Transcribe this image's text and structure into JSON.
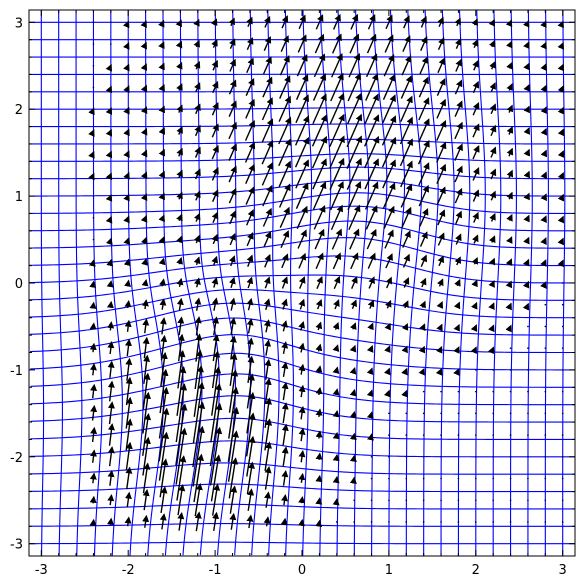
{
  "chart_data": {
    "type": "vector-field",
    "title": "",
    "xlabel": "",
    "ylabel": "",
    "xlim": [
      -3.14159,
      3.14159
    ],
    "ylim": [
      -3.14159,
      3.14159
    ],
    "xticks": [
      -3,
      -2,
      -1,
      0,
      1,
      2,
      3
    ],
    "yticks": [
      -3,
      -2,
      -1,
      0,
      1,
      2,
      3
    ],
    "xtick_labels": [
      "-3",
      "-2",
      "-1",
      "0",
      "1",
      "2",
      "3"
    ],
    "ytick_labels": [
      "-3",
      "-2",
      "-1",
      "0",
      "1",
      "2",
      "3"
    ],
    "grid": {
      "kind": "deformed mesh",
      "color": "#0000ff",
      "line_values": [
        -3.0,
        -2.8,
        -2.6,
        -2.4,
        -2.2,
        -2.0,
        -1.8,
        -1.6,
        -1.4,
        -1.2,
        -1.0,
        -0.8,
        -0.6,
        -0.4,
        -0.2,
        0.0,
        0.2,
        0.4,
        0.6,
        0.8,
        1.0,
        1.2,
        1.4,
        1.6,
        1.8,
        2.0,
        2.2,
        2.4,
        2.6,
        2.8,
        3.0
      ],
      "displacement": [
        {
          "axis": "x",
          "amplitude": 0.18,
          "center": [
            1.0,
            1.0
          ],
          "width": 1.0
        },
        {
          "axis": "x",
          "amplitude": 0.25,
          "center": [
            -1.3,
            -1.5
          ],
          "width": 0.8
        },
        {
          "axis": "y",
          "amplitude": 0.4,
          "center": [
            -1.0,
            -1.0
          ],
          "width": 0.8
        },
        {
          "axis": "y",
          "amplitude": 0.3,
          "center": [
            0.5,
            0.3
          ],
          "width": 0.7
        }
      ]
    },
    "vector_field": {
      "color": "#000000",
      "sample_x": [
        -2.4,
        -2.2,
        -2.0,
        -1.8,
        -1.6,
        -1.4,
        -1.2,
        -1.0,
        -0.8,
        -0.6,
        -0.4,
        -0.2,
        0.0,
        0.2,
        0.4,
        0.6,
        0.8,
        1.0,
        1.2,
        1.4,
        1.6,
        1.8,
        2.0,
        2.2,
        2.4,
        2.6,
        2.8,
        3.0
      ],
      "sample_y": [
        -2.75,
        -2.5,
        -2.25,
        -2.0,
        -1.75,
        -1.5,
        -1.25,
        -1.0,
        -0.75,
        -0.5,
        -0.25,
        0.0,
        0.25,
        0.5,
        0.75,
        1.0,
        1.25,
        1.5,
        1.75,
        2.0,
        2.25,
        2.5,
        2.75,
        3.0
      ],
      "sources": [
        {
          "center": [
            0.5,
            1.6
          ],
          "width": 1.1,
          "vx": 0.42,
          "vy": 0.95
        },
        {
          "center": [
            -1.3,
            -1.5
          ],
          "width": 0.75,
          "vx": 0.12,
          "vy": 1.1
        },
        {
          "center": [
            -1.1,
            -1.9
          ],
          "width": 0.55,
          "vx": 0.18,
          "vy": 0.9
        }
      ]
    }
  }
}
